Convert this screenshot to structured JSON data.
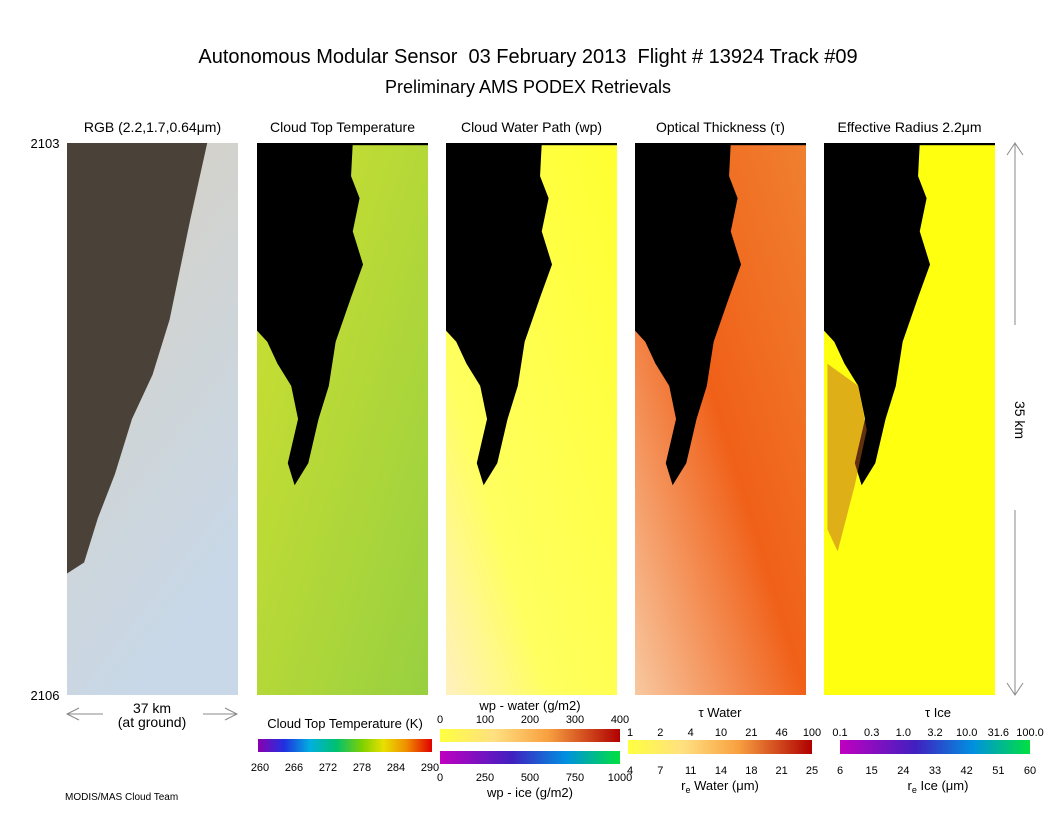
{
  "header": {
    "title": "Autonomous Modular Sensor  03 February 2013  Flight # 13924 Track #09",
    "subtitle": "Preliminary AMS PODEX Retrievals"
  },
  "panels": [
    {
      "title": "RGB (2.2,1.7,0.64μm)"
    },
    {
      "title": "Cloud Top Temperature"
    },
    {
      "title": "Cloud Water Path (wp)"
    },
    {
      "title": "Optical Thickness (τ)"
    },
    {
      "title": "Effective Radius 2.2μm"
    }
  ],
  "scan_labels": {
    "top": "2103",
    "bottom": "2106"
  },
  "scale": {
    "along_track": "35 km",
    "cross_track": "37 km",
    "cross_track_note": "(at ground)"
  },
  "colorbars": [
    {
      "label": "Cloud Top Temperature (K)",
      "ticks": [
        "260",
        "266",
        "272",
        "278",
        "284",
        "290"
      ]
    },
    {
      "label": "wp - water (g/m2)",
      "ticks": [
        "0",
        "100",
        "200",
        "300",
        "400"
      ]
    },
    {
      "label": "wp - ice (g/m2)",
      "ticks": [
        "0",
        "250",
        "500",
        "750",
        "1000"
      ]
    },
    {
      "label": "τ Water",
      "ticks": [
        "1",
        "2",
        "4",
        "10",
        "21",
        "46",
        "100"
      ]
    },
    {
      "label": [
        "r",
        "e",
        " Water (μm)"
      ],
      "ticks": [
        "4",
        "7",
        "11",
        "14",
        "18",
        "21",
        "25"
      ]
    },
    {
      "label": "τ Ice",
      "ticks": [
        "0.1",
        "0.3",
        "1.0",
        "3.2",
        "10.0",
        "31.6",
        "100.0"
      ]
    },
    {
      "label": [
        "r",
        "e",
        " Ice (μm)"
      ],
      "ticks": [
        "6",
        "15",
        "24",
        "33",
        "42",
        "51",
        "60"
      ]
    }
  ],
  "credit": "MODIS/MAS Cloud Team"
}
